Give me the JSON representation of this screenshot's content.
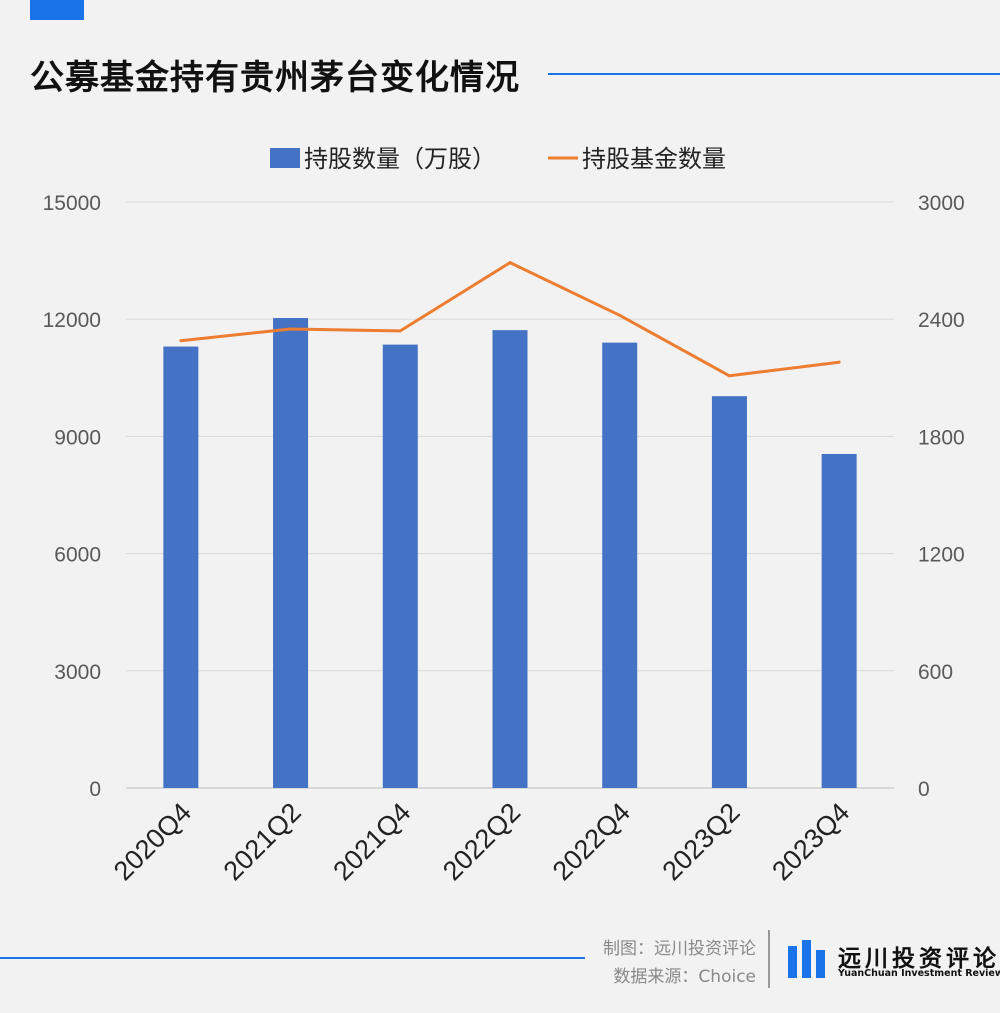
{
  "title": "公募基金持有贵州茅台变化情况",
  "footer": {
    "made_by": "制图：远川投资评论",
    "source": "数据来源：Choice",
    "brand_name": "远川投资评论",
    "brand_en": "YuanChuan Investment Review"
  },
  "colors": {
    "accent": "#1a73e8",
    "bar": "#4472c4",
    "line": "#ed7d31",
    "background": "#f2f2f2"
  },
  "chart_data": {
    "type": "bar",
    "categories": [
      "2020Q4",
      "2021Q2",
      "2021Q4",
      "2022Q2",
      "2022Q4",
      "2023Q2",
      "2023Q4"
    ],
    "series": [
      {
        "name": "持股数量（万股）",
        "type": "bar",
        "axis": "left",
        "values": [
          11300,
          12030,
          11350,
          11720,
          11400,
          10030,
          8550
        ]
      },
      {
        "name": "持股基金数量",
        "type": "line",
        "axis": "right",
        "values": [
          2290,
          2350,
          2340,
          2690,
          2420,
          2110,
          2180
        ]
      }
    ],
    "y_left": {
      "min": 0,
      "max": 15000,
      "ticks": [
        0,
        3000,
        6000,
        9000,
        12000,
        15000
      ]
    },
    "y_right": {
      "min": 0,
      "max": 3000,
      "ticks": [
        0,
        600,
        1200,
        1800,
        2400,
        3000
      ]
    },
    "grid": true,
    "legend": "top-center"
  }
}
